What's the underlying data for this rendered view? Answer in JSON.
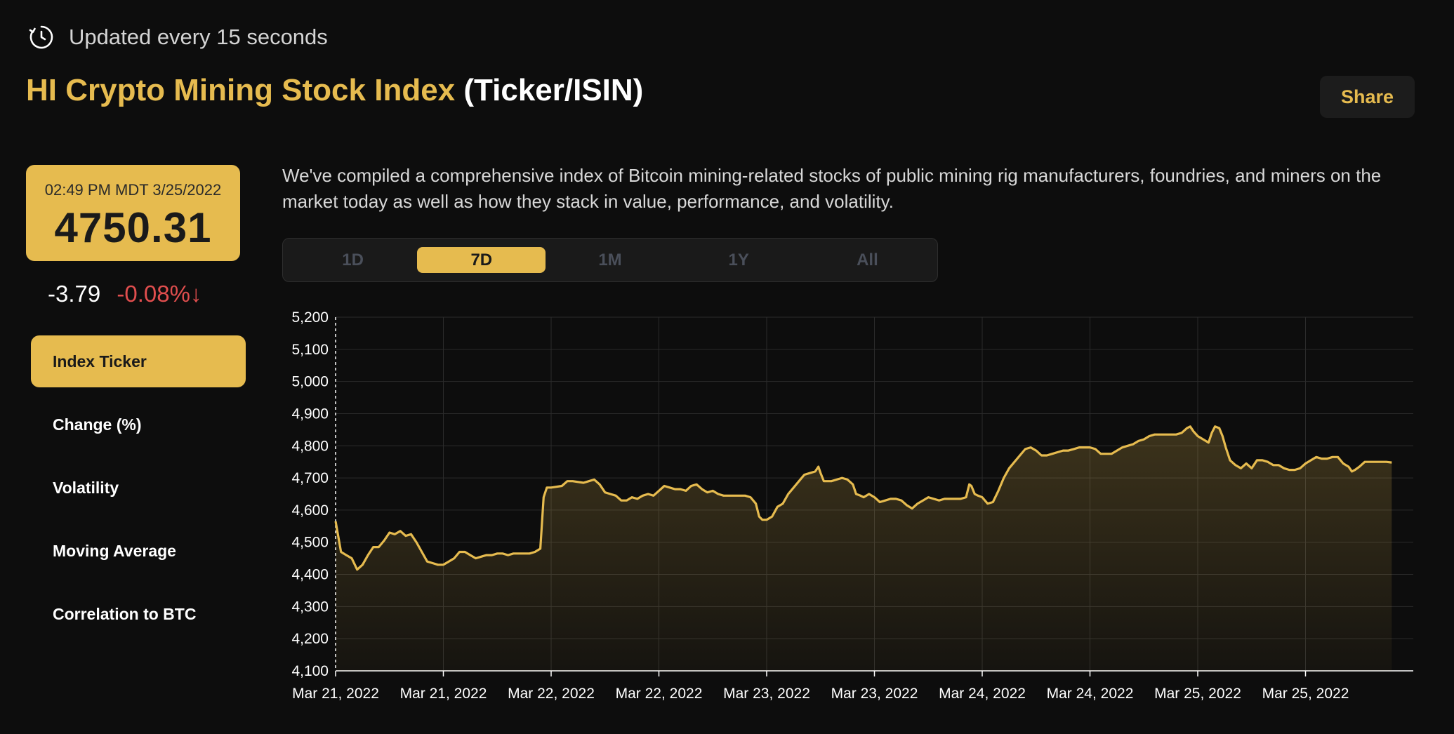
{
  "header": {
    "update_text": "Updated every 15 seconds",
    "title_accent": "HI Crypto Mining Stock Index",
    "title_rest": "(Ticker/ISIN)",
    "share_label": "Share"
  },
  "price_card": {
    "timestamp": "02:49 PM MDT 3/25/2022",
    "price": "4750.31"
  },
  "change": {
    "absolute": "-3.79",
    "percent": "-0.08%↓"
  },
  "sidebar": {
    "items": [
      {
        "label": "Index Ticker",
        "active": true
      },
      {
        "label": "Change (%)",
        "active": false
      },
      {
        "label": "Volatility",
        "active": false
      },
      {
        "label": "Moving Average",
        "active": false
      },
      {
        "label": "Correlation to BTC",
        "active": false
      }
    ]
  },
  "description": "We've compiled a comprehensive index of Bitcoin mining-related stocks of public mining rig manufacturers, foundries, and miners on the market today as well as how they stack in value, performance, and volatility.",
  "range_tabs": [
    {
      "label": "1D",
      "active": false
    },
    {
      "label": "7D",
      "active": true
    },
    {
      "label": "1M",
      "active": false
    },
    {
      "label": "1Y",
      "active": false
    },
    {
      "label": "All",
      "active": false
    }
  ],
  "colors": {
    "accent": "#e6bb4f",
    "negative": "#e04e4e",
    "background": "#0d0d0d"
  },
  "chart_data": {
    "type": "area",
    "ylim": [
      4100,
      5200
    ],
    "xlim": [
      0,
      100
    ],
    "yticks": [
      "5,200",
      "5,100",
      "5,000",
      "4,900",
      "4,800",
      "4,700",
      "4,600",
      "4,500",
      "4,400",
      "4,300",
      "4,200",
      "4,100"
    ],
    "ytick_values": [
      5200,
      5100,
      5000,
      4900,
      4800,
      4700,
      4600,
      4500,
      4400,
      4300,
      4200,
      4100
    ],
    "xticks": [
      "Mar 21, 2022",
      "Mar 21, 2022",
      "Mar 22, 2022",
      "Mar 22, 2022",
      "Mar 23, 2022",
      "Mar 23, 2022",
      "Mar 24, 2022",
      "Mar 24, 2022",
      "Mar 25, 2022",
      "Mar 25, 2022"
    ],
    "xtick_values": [
      0,
      10,
      20,
      30,
      40,
      50,
      60,
      70,
      80,
      90
    ],
    "grid": true,
    "series": [
      {
        "points": [
          [
            0,
            4565
          ],
          [
            0.5,
            4470
          ],
          [
            1,
            4460
          ],
          [
            1.5,
            4450
          ],
          [
            2,
            4415
          ],
          [
            2.5,
            4430
          ],
          [
            3,
            4460
          ],
          [
            3.5,
            4485
          ],
          [
            4,
            4485
          ],
          [
            4.5,
            4505
          ],
          [
            5,
            4530
          ],
          [
            5.5,
            4525
          ],
          [
            6,
            4535
          ],
          [
            6.5,
            4520
          ],
          [
            7,
            4525
          ],
          [
            7.5,
            4500
          ],
          [
            8,
            4470
          ],
          [
            8.5,
            4440
          ],
          [
            9,
            4435
          ],
          [
            9.5,
            4430
          ],
          [
            10,
            4430
          ],
          [
            10.5,
            4440
          ],
          [
            11,
            4450
          ],
          [
            11.5,
            4470
          ],
          [
            12,
            4470
          ],
          [
            12.5,
            4460
          ],
          [
            13,
            4450
          ],
          [
            13.5,
            4455
          ],
          [
            14,
            4460
          ],
          [
            14.5,
            4460
          ],
          [
            15,
            4465
          ],
          [
            15.5,
            4465
          ],
          [
            16,
            4460
          ],
          [
            16.5,
            4465
          ],
          [
            17,
            4465
          ],
          [
            17.5,
            4465
          ],
          [
            18,
            4465
          ],
          [
            18.5,
            4470
          ],
          [
            19,
            4480
          ],
          [
            19.3,
            4640
          ],
          [
            19.6,
            4670
          ],
          [
            20,
            4670
          ],
          [
            21,
            4675
          ],
          [
            21.5,
            4690
          ],
          [
            22,
            4690
          ],
          [
            23,
            4685
          ],
          [
            23.5,
            4690
          ],
          [
            24,
            4695
          ],
          [
            24.5,
            4680
          ],
          [
            25,
            4655
          ],
          [
            25.5,
            4650
          ],
          [
            26,
            4645
          ],
          [
            26.5,
            4630
          ],
          [
            27,
            4630
          ],
          [
            27.5,
            4640
          ],
          [
            28,
            4635
          ],
          [
            28.5,
            4645
          ],
          [
            29,
            4650
          ],
          [
            29.5,
            4645
          ],
          [
            30,
            4660
          ],
          [
            30.5,
            4675
          ],
          [
            31,
            4670
          ],
          [
            31.5,
            4665
          ],
          [
            32,
            4665
          ],
          [
            32.5,
            4660
          ],
          [
            33,
            4675
          ],
          [
            33.5,
            4680
          ],
          [
            34,
            4665
          ],
          [
            34.5,
            4655
          ],
          [
            35,
            4660
          ],
          [
            35.5,
            4650
          ],
          [
            36,
            4645
          ],
          [
            37,
            4645
          ],
          [
            38,
            4645
          ],
          [
            38.5,
            4640
          ],
          [
            39,
            4620
          ],
          [
            39.3,
            4580
          ],
          [
            39.6,
            4570
          ],
          [
            40,
            4570
          ],
          [
            40.5,
            4580
          ],
          [
            41,
            4610
          ],
          [
            41.5,
            4620
          ],
          [
            42,
            4650
          ],
          [
            42.5,
            4670
          ],
          [
            43,
            4690
          ],
          [
            43.5,
            4710
          ],
          [
            44,
            4715
          ],
          [
            44.5,
            4720
          ],
          [
            44.8,
            4735
          ],
          [
            45,
            4715
          ],
          [
            45.3,
            4690
          ],
          [
            45.6,
            4690
          ],
          [
            46,
            4690
          ],
          [
            46.5,
            4695
          ],
          [
            47,
            4700
          ],
          [
            47.5,
            4695
          ],
          [
            48,
            4680
          ],
          [
            48.3,
            4650
          ],
          [
            48.7,
            4645
          ],
          [
            49,
            4640
          ],
          [
            49.5,
            4650
          ],
          [
            50,
            4640
          ],
          [
            50.5,
            4625
          ],
          [
            51,
            4630
          ],
          [
            51.5,
            4635
          ],
          [
            52,
            4635
          ],
          [
            52.5,
            4630
          ],
          [
            53,
            4615
          ],
          [
            53.5,
            4605
          ],
          [
            54,
            4620
          ],
          [
            54.5,
            4630
          ],
          [
            55,
            4640
          ],
          [
            55.5,
            4635
          ],
          [
            56,
            4630
          ],
          [
            56.5,
            4635
          ],
          [
            57,
            4635
          ],
          [
            57.5,
            4635
          ],
          [
            58,
            4635
          ],
          [
            58.5,
            4640
          ],
          [
            58.8,
            4680
          ],
          [
            59,
            4675
          ],
          [
            59.3,
            4650
          ],
          [
            59.6,
            4645
          ],
          [
            60,
            4640
          ],
          [
            60.5,
            4620
          ],
          [
            61,
            4625
          ],
          [
            61.5,
            4660
          ],
          [
            62,
            4700
          ],
          [
            62.5,
            4730
          ],
          [
            63,
            4750
          ],
          [
            63.5,
            4770
          ],
          [
            64,
            4790
          ],
          [
            64.5,
            4795
          ],
          [
            65,
            4785
          ],
          [
            65.5,
            4770
          ],
          [
            66,
            4770
          ],
          [
            66.5,
            4775
          ],
          [
            67,
            4780
          ],
          [
            67.5,
            4785
          ],
          [
            68,
            4785
          ],
          [
            68.5,
            4790
          ],
          [
            69,
            4795
          ],
          [
            70,
            4795
          ],
          [
            70.5,
            4790
          ],
          [
            71,
            4775
          ],
          [
            72,
            4775
          ],
          [
            72.5,
            4785
          ],
          [
            73,
            4795
          ],
          [
            73.5,
            4800
          ],
          [
            74,
            4805
          ],
          [
            74.5,
            4815
          ],
          [
            75,
            4820
          ],
          [
            75.5,
            4830
          ],
          [
            76,
            4835
          ],
          [
            76.5,
            4835
          ],
          [
            77,
            4835
          ],
          [
            77.5,
            4835
          ],
          [
            78,
            4835
          ],
          [
            78.5,
            4840
          ],
          [
            79,
            4855
          ],
          [
            79.3,
            4860
          ],
          [
            79.6,
            4845
          ],
          [
            80,
            4830
          ],
          [
            80.5,
            4820
          ],
          [
            81,
            4810
          ],
          [
            81.3,
            4840
          ],
          [
            81.6,
            4860
          ],
          [
            82,
            4855
          ],
          [
            82.3,
            4830
          ],
          [
            82.6,
            4795
          ],
          [
            83,
            4755
          ],
          [
            83.5,
            4740
          ],
          [
            84,
            4730
          ],
          [
            84.5,
            4745
          ],
          [
            85,
            4730
          ],
          [
            85.5,
            4755
          ],
          [
            86,
            4755
          ],
          [
            86.5,
            4750
          ],
          [
            87,
            4740
          ],
          [
            87.5,
            4740
          ],
          [
            88,
            4730
          ],
          [
            88.5,
            4725
          ],
          [
            89,
            4725
          ],
          [
            89.5,
            4730
          ],
          [
            90,
            4745
          ],
          [
            90.5,
            4755
          ],
          [
            91,
            4765
          ],
          [
            91.5,
            4760
          ],
          [
            92,
            4760
          ],
          [
            92.5,
            4765
          ],
          [
            93,
            4765
          ],
          [
            93.5,
            4745
          ],
          [
            94,
            4735
          ],
          [
            94.3,
            4720
          ],
          [
            94.6,
            4725
          ],
          [
            95,
            4735
          ],
          [
            95.5,
            4750
          ],
          [
            96,
            4750
          ],
          [
            96.5,
            4750
          ],
          [
            97,
            4750
          ],
          [
            97.5,
            4750
          ],
          [
            98,
            4748
          ]
        ]
      }
    ]
  }
}
